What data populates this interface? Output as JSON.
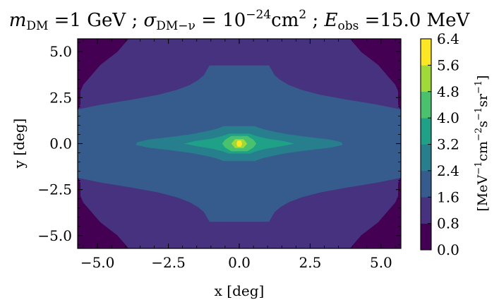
{
  "chart_data": {
    "type": "contourf",
    "title_parts": {
      "m_sym": "m",
      "m_sub": "DM",
      "m_val": " =1 GeV ; ",
      "sigma_sym": "σ",
      "sigma_sub": "DM−ν",
      "sigma_eq": " = 10",
      "sigma_exp": "−24",
      "sigma_unit": "cm",
      "sigma_unit_exp": "2",
      "sep": " ; ",
      "e_sym": "E",
      "e_sub": "obs",
      "e_val": " =15.0 MeV"
    },
    "xlabel": "x [deg]",
    "ylabel": "y [deg]",
    "xlim": [
      -5.7,
      5.7
    ],
    "ylim": [
      -5.7,
      5.7
    ],
    "xticks": [
      "−5.0",
      "−2.5",
      "0.0",
      "2.5",
      "5.0"
    ],
    "xtick_values": [
      -5.0,
      -2.5,
      0.0,
      2.5,
      5.0
    ],
    "yticks": [
      "−5.0",
      "−2.5",
      "0.0",
      "2.5",
      "5.0"
    ],
    "ytick_values": [
      -5.0,
      -2.5,
      0.0,
      2.5,
      5.0
    ],
    "colorbar": {
      "levels": [
        0.0,
        0.8,
        1.6,
        2.4,
        3.2,
        4.0,
        4.8,
        5.6,
        6.4
      ],
      "tick_labels": [
        "0.0",
        "0.8",
        "1.6",
        "2.4",
        "3.2",
        "4.0",
        "4.8",
        "5.6",
        "6.4"
      ],
      "label_parts": [
        "[MeV",
        "−1",
        "cm",
        "−2",
        "s",
        "−1",
        "sr",
        "−1",
        "]"
      ],
      "colors": [
        "#440154",
        "#46327e",
        "#365c8d",
        "#277f8e",
        "#1fa187",
        "#4ac16d",
        "#a0da39",
        "#fde725"
      ],
      "colormap": "viridis"
    },
    "contour_regions": [
      {
        "min": 0.0,
        "max": 0.8,
        "hw": [
          5.7,
          5.7,
          5.7,
          5.7,
          5.7,
          5.7,
          5.7,
          5.7,
          5.7,
          5.7,
          5.7,
          5.7,
          5.7,
          5.7,
          5.7,
          5.7,
          5.7,
          5.7,
          5.7,
          5.7,
          5.7,
          5.7,
          5.7,
          5.7,
          5.7,
          5.7,
          5.7,
          5.7,
          5.7,
          5.7,
          5.7,
          5.7,
          5.7
        ]
      },
      {
        "min": 0.8,
        "max": 1.6,
        "hw": [
          3.9,
          4.1,
          4.3,
          4.6,
          4.9,
          5.1,
          5.3,
          5.5,
          5.6,
          5.6,
          5.6,
          5.7,
          5.7,
          5.7,
          5.7,
          5.7,
          5.7,
          5.7,
          5.7,
          5.7,
          5.7,
          5.7,
          5.6,
          5.6,
          5.6,
          5.5,
          5.3,
          5.1,
          4.9,
          4.6,
          4.3,
          4.1,
          3.9
        ]
      },
      {
        "min": 1.6,
        "max": 2.4,
        "hw": [
          1.05,
          1.15,
          1.25,
          1.45,
          1.75,
          2.2,
          2.85,
          3.8,
          4.85,
          5.7,
          5.7,
          5.7,
          5.7,
          5.7,
          5.7,
          5.7,
          5.7,
          5.7,
          5.7,
          5.7,
          5.7,
          5.7,
          5.7,
          5.7,
          4.85,
          3.8,
          2.85,
          2.2,
          1.75,
          1.45,
          1.25,
          1.15,
          1.05
        ]
      },
      {
        "min": 2.4,
        "max": 3.2,
        "hw": [
          0.55,
          0.8,
          1.2,
          1.7,
          2.4,
          3.2,
          3.65,
          3.6,
          3.2,
          2.4,
          1.7,
          1.2,
          0.8,
          0.55
        ]
      },
      {
        "min": 3.2,
        "max": 4.0,
        "hw": [
          0.35,
          0.6,
          0.95,
          1.5,
          1.95,
          1.55,
          0.95,
          0.6,
          0.35
        ]
      },
      {
        "min": 4.0,
        "max": 4.8,
        "hw": [
          0.28,
          0.5,
          0.6,
          0.5,
          0.28
        ]
      },
      {
        "min": 4.8,
        "max": 5.6,
        "hw": [
          0.15,
          0.28,
          0.15
        ]
      },
      {
        "min": 5.6,
        "max": 6.4,
        "hw": [
          0.06,
          0.1,
          0.06
        ]
      }
    ],
    "contour_y_extent": [
      [
        -5.7,
        5.7
      ],
      [
        -5.7,
        5.7
      ],
      [
        -4.25,
        4.25
      ],
      [
        -0.95,
        0.95
      ],
      [
        -0.55,
        0.55
      ],
      [
        -0.42,
        0.42
      ],
      [
        -0.24,
        0.24
      ],
      [
        -0.17,
        0.17
      ]
    ]
  }
}
